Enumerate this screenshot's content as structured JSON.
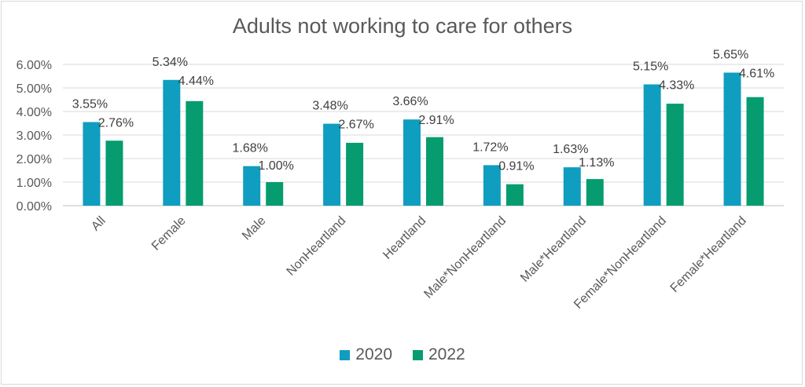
{
  "chart_data": {
    "type": "bar",
    "title": "Adults not working to care for others",
    "categories": [
      "All",
      "Female",
      "Male",
      "NonHeartland",
      "Heartland",
      "Male*NonHeartland",
      "Male*Heartland",
      "Female*NonHeartland",
      "Female*Heartland"
    ],
    "series": [
      {
        "name": "2020",
        "color": "#0f9ebf",
        "values": [
          3.55,
          5.34,
          1.68,
          3.48,
          3.66,
          1.72,
          1.63,
          5.15,
          5.65
        ],
        "labels": [
          "3.55%",
          "5.34%",
          "1.68%",
          "3.48%",
          "3.66%",
          "1.72%",
          "1.63%",
          "5.15%",
          "5.65%"
        ]
      },
      {
        "name": "2022",
        "color": "#069c6f",
        "values": [
          2.76,
          4.44,
          1.0,
          2.67,
          2.91,
          0.91,
          1.13,
          4.33,
          4.61
        ],
        "labels": [
          "2.76%",
          "4.44%",
          "1.00%",
          "2.67%",
          "2.91%",
          "0.91%",
          "1.13%",
          "4.33%",
          "4.61%"
        ]
      }
    ],
    "yticks": [
      "0.00%",
      "1.00%",
      "2.00%",
      "3.00%",
      "4.00%",
      "5.00%",
      "6.00%"
    ],
    "ylim": [
      0,
      6
    ],
    "grid": true,
    "legend": "bottom"
  }
}
